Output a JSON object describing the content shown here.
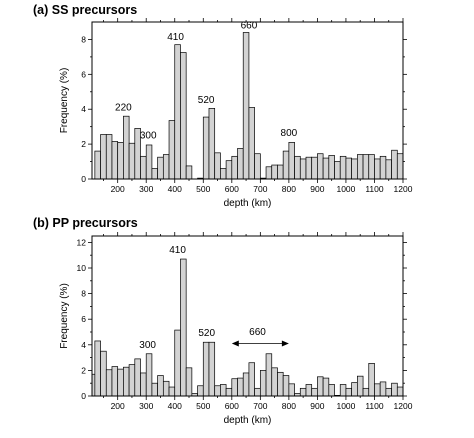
{
  "chart_data": [
    {
      "type": "bar",
      "title": "(a) SS precursors",
      "xlabel": "depth (km)",
      "ylabel": "Frequency (%)",
      "xlim": [
        110,
        1200
      ],
      "ylim": [
        0,
        9
      ],
      "xticks": [
        200,
        300,
        400,
        500,
        600,
        700,
        800,
        900,
        1000,
        1100,
        1200
      ],
      "yticks": [
        0,
        2,
        4,
        6,
        8
      ],
      "bin_width": 20,
      "bin_starts": [
        120,
        140,
        160,
        180,
        200,
        220,
        240,
        260,
        280,
        300,
        320,
        340,
        360,
        380,
        400,
        420,
        440,
        460,
        480,
        500,
        520,
        540,
        560,
        580,
        600,
        620,
        640,
        660,
        680,
        700,
        720,
        740,
        760,
        780,
        800,
        820,
        840,
        860,
        880,
        900,
        920,
        940,
        960,
        980,
        1000,
        1020,
        1040,
        1060,
        1080,
        1100,
        1120,
        1140,
        1160,
        1180
      ],
      "values": [
        1.6,
        2.55,
        2.55,
        2.15,
        2.1,
        3.6,
        2.05,
        2.9,
        1.3,
        1.95,
        0.6,
        1.25,
        1.4,
        3.35,
        7.7,
        7.25,
        0.75,
        0,
        0.05,
        3.55,
        4.05,
        1.5,
        0.6,
        1.05,
        1.3,
        1.75,
        8.4,
        4.1,
        1.45,
        0.05,
        0.7,
        0.8,
        0.8,
        1.6,
        2.1,
        1.3,
        1.15,
        1.25,
        1.25,
        1.45,
        1.2,
        1.35,
        1.0,
        1.3,
        1.2,
        1.15,
        1.4,
        1.4,
        1.4,
        1.15,
        1.3,
        1.1,
        1.65,
        1.45
      ],
      "annotations": [
        {
          "text": "220",
          "x": 220,
          "y": 3.8
        },
        {
          "text": "300",
          "x": 307,
          "y": 2.2
        },
        {
          "text": "410",
          "x": 403,
          "y": 7.85
        },
        {
          "text": "520",
          "x": 510,
          "y": 4.25
        },
        {
          "text": "660",
          "x": 660,
          "y": 8.5
        },
        {
          "text": "800",
          "x": 800,
          "y": 2.35
        }
      ]
    },
    {
      "type": "bar",
      "title": "(b) PP precursors",
      "xlabel": "depth (km)",
      "ylabel": "Frequency (%)",
      "xlim": [
        110,
        1200
      ],
      "ylim": [
        0,
        12.5
      ],
      "xticks": [
        200,
        300,
        400,
        500,
        600,
        700,
        800,
        900,
        1000,
        1100,
        1200
      ],
      "yticks": [
        0,
        2,
        4,
        6,
        8,
        10,
        12
      ],
      "bin_width": 20,
      "bin_starts": [
        100,
        120,
        140,
        160,
        180,
        200,
        220,
        240,
        260,
        280,
        300,
        320,
        340,
        360,
        380,
        400,
        420,
        440,
        460,
        480,
        500,
        520,
        540,
        560,
        580,
        600,
        620,
        640,
        660,
        680,
        700,
        720,
        740,
        760,
        780,
        800,
        820,
        840,
        860,
        880,
        900,
        920,
        940,
        960,
        980,
        1000,
        1020,
        1040,
        1060,
        1080,
        1100,
        1120,
        1140,
        1160,
        1180
      ],
      "values": [
        1.7,
        4.3,
        3.5,
        2.05,
        2.3,
        2.1,
        2.25,
        2.45,
        2.9,
        1.8,
        3.3,
        1.0,
        1.6,
        1.15,
        0.7,
        5.15,
        10.7,
        2.2,
        0.2,
        0.8,
        4.2,
        4.2,
        0.8,
        0.9,
        0.6,
        1.35,
        1.4,
        1.8,
        2.6,
        0.6,
        2.0,
        3.3,
        2.2,
        1.85,
        1.6,
        0.95,
        0.2,
        0.6,
        0.9,
        0.6,
        1.5,
        1.4,
        0.9,
        0.05,
        0.9,
        0.6,
        1.05,
        1.55,
        0.6,
        2.55,
        0.95,
        1.1,
        0.6,
        1.0,
        0.7
      ],
      "annotations": [
        {
          "text": "300",
          "x": 305,
          "y": 3.6
        },
        {
          "text": "410",
          "x": 410,
          "y": 11.0
        },
        {
          "text": "520",
          "x": 512,
          "y": 4.55
        },
        {
          "text": "660",
          "x": 690,
          "y": 4.6
        }
      ],
      "range_arrow": {
        "x1": 600,
        "x2": 800,
        "y": 4.1
      }
    }
  ]
}
